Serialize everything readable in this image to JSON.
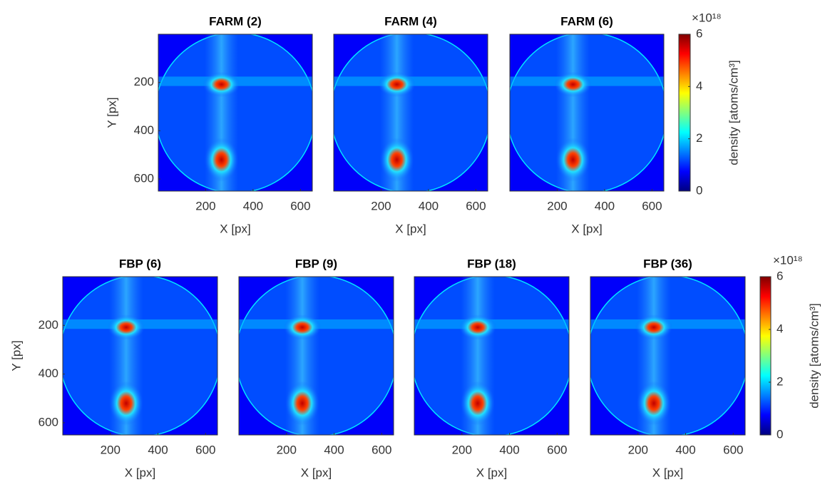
{
  "chart_data": [
    {
      "type": "heatmap",
      "title": "FARM (2)",
      "xlabel": "X [px]",
      "ylabel": "Y [px]",
      "xlim": [
        0,
        650
      ],
      "ylim": [
        0,
        650
      ],
      "y_reversed": true,
      "xticks": [
        200,
        400,
        600
      ],
      "yticks": [
        200,
        400,
        600
      ],
      "colormap": "jet"
    },
    {
      "type": "heatmap",
      "title": "FARM (4)",
      "xlabel": "X [px]",
      "xlim": [
        0,
        650
      ],
      "ylim": [
        0,
        650
      ],
      "y_reversed": true,
      "xticks": [
        200,
        400,
        600
      ],
      "colormap": "jet"
    },
    {
      "type": "heatmap",
      "title": "FARM (6)",
      "xlabel": "X [px]",
      "xlim": [
        0,
        650
      ],
      "ylim": [
        0,
        650
      ],
      "y_reversed": true,
      "xticks": [
        200,
        400,
        600
      ],
      "colormap": "jet"
    },
    {
      "type": "colorbar",
      "label": "density [atoms/cm³]",
      "exponent": "×10¹⁸",
      "ylim": [
        0,
        6
      ],
      "yticks": [
        0,
        2,
        4,
        6
      ],
      "colormap": "jet"
    },
    {
      "type": "heatmap",
      "title": "FBP (6)",
      "xlabel": "X [px]",
      "ylabel": "Y [px]",
      "xlim": [
        0,
        650
      ],
      "ylim": [
        0,
        650
      ],
      "y_reversed": true,
      "xticks": [
        200,
        400,
        600
      ],
      "yticks": [
        200,
        400,
        600
      ],
      "colormap": "jet"
    },
    {
      "type": "heatmap",
      "title": "FBP (9)",
      "xlabel": "X [px]",
      "xlim": [
        0,
        650
      ],
      "ylim": [
        0,
        650
      ],
      "y_reversed": true,
      "xticks": [
        200,
        400,
        600
      ],
      "colormap": "jet"
    },
    {
      "type": "heatmap",
      "title": "FBP (18)",
      "xlabel": "X [px]",
      "xlim": [
        0,
        650
      ],
      "ylim": [
        0,
        650
      ],
      "y_reversed": true,
      "xticks": [
        200,
        400,
        600
      ],
      "colormap": "jet"
    },
    {
      "type": "heatmap",
      "title": "FBP (36)",
      "xlabel": "X [px]",
      "xlim": [
        0,
        650
      ],
      "ylim": [
        0,
        650
      ],
      "y_reversed": true,
      "xticks": [
        200,
        400,
        600
      ],
      "colormap": "jet"
    },
    {
      "type": "colorbar",
      "label": "density [atoms/cm³]",
      "exponent": "×10¹⁸",
      "ylim": [
        0,
        6
      ],
      "yticks": [
        0,
        2,
        4,
        6
      ],
      "colormap": "jet"
    }
  ]
}
